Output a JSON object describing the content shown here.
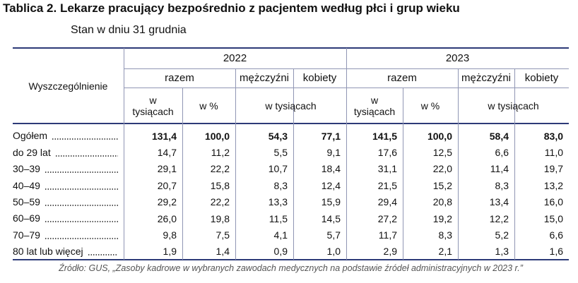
{
  "title": "Tablica 2. Lekarze pracujący bezpośrednio z pacjentem według płci i grup wieku",
  "subtitle": "Stan w dniu 31 grudnia",
  "table": {
    "stub": "Wyszczególnienie",
    "years": [
      {
        "year": "2022",
        "groups": [
          "razem",
          "mężczyźni",
          "kobiety"
        ],
        "units": [
          "w tysiącach",
          "w %",
          "w tysiącach"
        ]
      },
      {
        "year": "2023",
        "groups": [
          "razem",
          "mężczyźni",
          "kobiety"
        ],
        "units": [
          "w tysiącach",
          "w %",
          "w tysiącach"
        ]
      }
    ],
    "rows": [
      {
        "label": "Ogółem",
        "values": [
          "131,4",
          "100,0",
          "54,3",
          "77,1",
          "141,5",
          "100,0",
          "58,4",
          "83,0"
        ]
      },
      {
        "label": "do 29 lat",
        "values": [
          "14,7",
          "11,2",
          "5,5",
          "9,1",
          "17,6",
          "12,5",
          "6,6",
          "11,0"
        ]
      },
      {
        "label": "30–39",
        "values": [
          "29,1",
          "22,2",
          "10,7",
          "18,4",
          "31,1",
          "22,0",
          "11,4",
          "19,7"
        ]
      },
      {
        "label": "40–49",
        "values": [
          "20,7",
          "15,8",
          "8,3",
          "12,4",
          "21,5",
          "15,2",
          "8,3",
          "13,2"
        ]
      },
      {
        "label": "50–59",
        "values": [
          "29,2",
          "22,2",
          "13,3",
          "15,9",
          "29,4",
          "20,8",
          "13,4",
          "16,0"
        ]
      },
      {
        "label": "60–69",
        "values": [
          "26,0",
          "19,8",
          "11,5",
          "14,5",
          "27,2",
          "19,2",
          "12,2",
          "15,0"
        ]
      },
      {
        "label": "70–79",
        "values": [
          "9,8",
          "7,5",
          "4,1",
          "5,7",
          "11,7",
          "8,3",
          "5,2",
          "6,6"
        ]
      },
      {
        "label": "80 lat lub więcej",
        "values": [
          "1,9",
          "1,4",
          "0,9",
          "1,0",
          "2,9",
          "2,1",
          "1,3",
          "1,6"
        ]
      }
    ]
  },
  "source": "Źródło: GUS, „Zasoby kadrowe w wybranych zawodach medycznych na podstawie źródeł administracyjnych w 2023 r.”"
}
